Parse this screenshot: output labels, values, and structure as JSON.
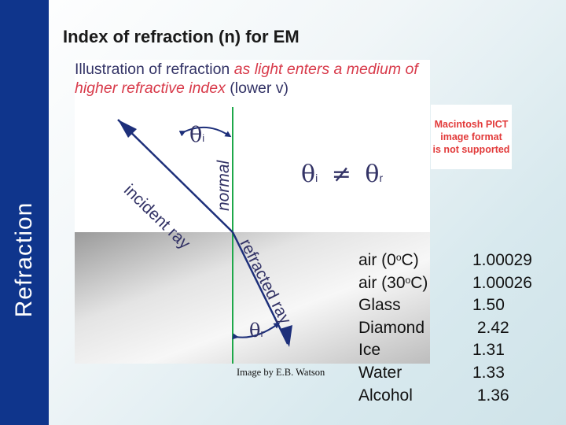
{
  "sidebar": {
    "label": "Refraction"
  },
  "title": "Index of refraction (n) for EM",
  "figure": {
    "caption_plain_1": "Illustration of refraction ",
    "caption_red": "as light enters a medium of higher refractive index",
    "caption_plain_2": " (lower v)",
    "theta": "θ",
    "sub_i": "i",
    "sub_r": "r",
    "neq": "≠",
    "label_incident_ray": "incident ray",
    "label_normal": "normal",
    "label_refracted_ray": "refracted ray",
    "credit": "Image by E.B. Watson",
    "colors": {
      "normal": "#1ea84a",
      "ray": "#1d2f7a",
      "theta": "#333366",
      "label": "#333366"
    }
  },
  "pict_notice": [
    "Macintosh PICT",
    "image format",
    "is not supported"
  ],
  "materials": [
    {
      "name_pre": "air (0",
      "sup": "o",
      "name_post": "C)",
      "value": "1.00029"
    },
    {
      "name_pre": "air (30",
      "sup": "o",
      "name_post": "C)",
      "value": "1.00026"
    },
    {
      "name_pre": "Glass",
      "sup": "",
      "name_post": "",
      "value": "1.50"
    },
    {
      "name_pre": "Diamond",
      "sup": "",
      "name_post": "",
      "value": " 2.42"
    },
    {
      "name_pre": "Ice",
      "sup": "",
      "name_post": "",
      "value": "1.31"
    },
    {
      "name_pre": "Water",
      "sup": "",
      "name_post": "",
      "value": "1.33"
    },
    {
      "name_pre": "Alcohol",
      "sup": "",
      "name_post": "",
      "value": " 1.36"
    }
  ]
}
